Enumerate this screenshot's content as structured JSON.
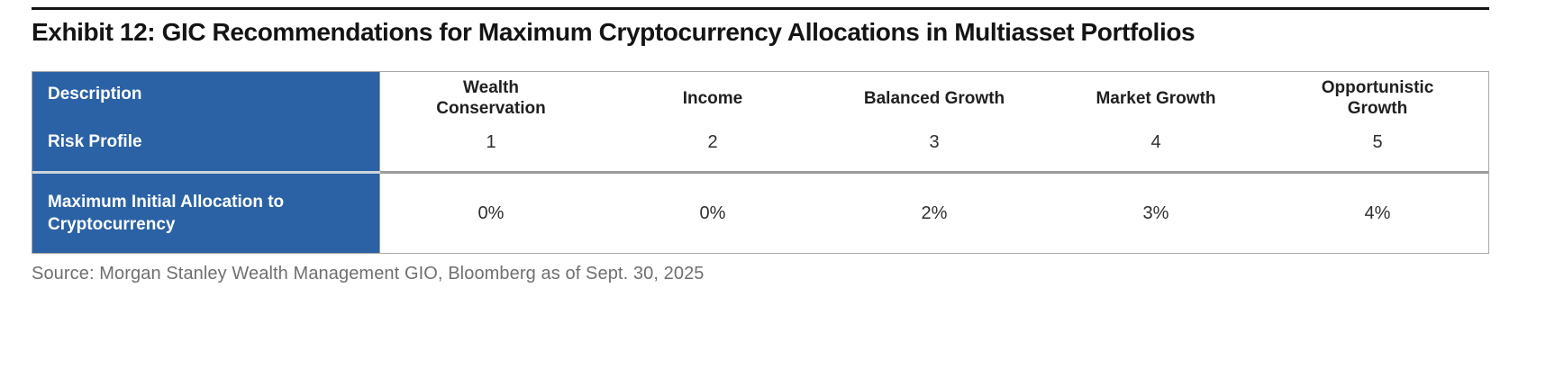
{
  "title": "Exhibit 12: GIC Recommendations for Maximum Cryptocurrency Allocations in Multiasset Portfolios",
  "table": {
    "row_labels": {
      "description": "Description",
      "risk_profile": "Risk Profile",
      "max_allocation": "Maximum Initial Allocation to Cryptocurrency"
    },
    "columns": [
      {
        "description": "Wealth Conservation",
        "risk_profile": "1",
        "max_allocation": "0%"
      },
      {
        "description": "Income",
        "risk_profile": "2",
        "max_allocation": "0%"
      },
      {
        "description": "Balanced Growth",
        "risk_profile": "3",
        "max_allocation": "2%"
      },
      {
        "description": "Market Growth",
        "risk_profile": "4",
        "max_allocation": "3%"
      },
      {
        "description": "Opportunistic Growth",
        "risk_profile": "5",
        "max_allocation": "4%"
      }
    ]
  },
  "source": "Source: Morgan Stanley Wealth Management GIO, Bloomberg as of Sept. 30, 2025",
  "colors": {
    "header_blue": "#2a62a5",
    "divider_gray": "#9b9b9b",
    "border_gray": "#a6a6a6",
    "rule_black": "#141414",
    "source_gray": "#6f6f6f"
  },
  "chart_data": {
    "type": "table",
    "title": "Exhibit 12: GIC Recommendations for Maximum Cryptocurrency Allocations in Multiasset Portfolios",
    "categories": [
      "Wealth Conservation",
      "Income",
      "Balanced Growth",
      "Market Growth",
      "Opportunistic Growth"
    ],
    "series": [
      {
        "name": "Risk Profile",
        "values": [
          1,
          2,
          3,
          4,
          5
        ]
      },
      {
        "name": "Maximum Initial Allocation to Cryptocurrency",
        "values": [
          "0%",
          "0%",
          "2%",
          "3%",
          "4%"
        ]
      }
    ]
  }
}
